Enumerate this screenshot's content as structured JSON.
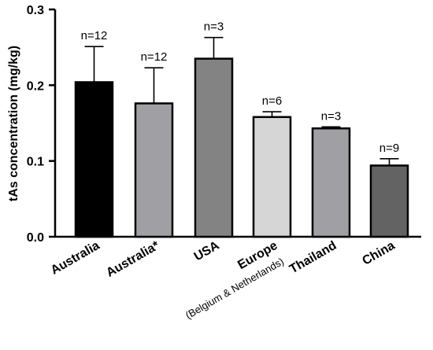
{
  "chart_data": {
    "type": "bar",
    "ylabel": "tAs concentration (mg/kg)",
    "ylim": [
      0,
      0.3
    ],
    "yticks": [
      "0.0",
      "0.1",
      "0.2",
      "0.3"
    ],
    "yticks_values": [
      0,
      0.1,
      0.2,
      0.3
    ],
    "categories": [
      "Australia",
      "Australia*",
      "USA",
      "Europe",
      "Thailand",
      "China"
    ],
    "category_sublabels": [
      "",
      "",
      "",
      "(Belgium & Netherlands)",
      "",
      ""
    ],
    "values": [
      0.204,
      0.176,
      0.235,
      0.158,
      0.143,
      0.094
    ],
    "error_upper": [
      0.251,
      0.223,
      0.263,
      0.165,
      0.145,
      0.103
    ],
    "n_labels": [
      "n=12",
      "n=12",
      "n=3",
      "n=6",
      "n=3",
      "n=9"
    ],
    "bar_colors": [
      "#000000",
      "#a0a0a4",
      "#838383",
      "#d6d6d6",
      "#a0a0a4",
      "#636363"
    ],
    "grid": false
  }
}
